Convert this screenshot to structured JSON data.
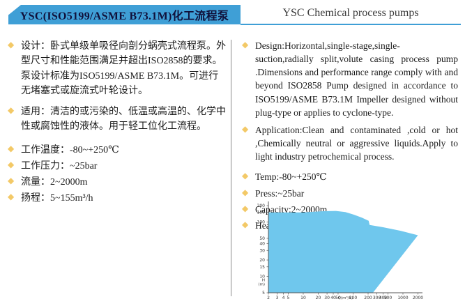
{
  "header": {
    "banner_title": "YSC(ISO5199/ASME B73.1M)化工流程泵",
    "english_title": "YSC Chemical process pumps",
    "banner_color": "#3f9fd6",
    "underline_color": "#3f9fd6"
  },
  "colors": {
    "bullet_diamond": "#f3c967",
    "chart_fill": "#6fc7ed",
    "axis": "#555555",
    "divider": "#8a8a8a"
  },
  "left_column": {
    "bullets": [
      {
        "text": "设计：卧式单级单吸径向剖分蜗壳式流程泵。外型尺寸和性能范围满足并超出ISO2858的要求。泵设计标准为ISO5199/ASME B73.1M。可进行无堵塞式或旋流式叶轮设计。"
      },
      {
        "text": "适用：清洁的或污染的、低温或高温的、化学中性或腐蚀性的液体。用于轻工位化工流程。"
      },
      {
        "text": "工作温度：-80~+250℃"
      },
      {
        "text": "工作压力：~25bar"
      },
      {
        "text": "流量：2~2000m"
      },
      {
        "text": "扬程：5~155m³/h"
      }
    ]
  },
  "right_column": {
    "bullets": [
      {
        "text": "Design:Horizontal,single-stage,single-suction,radially split,volute casing process pump .Dimensions and performance range comply with and beyond ISO2858 Pump designed in accordance to ISO5199/ASME B73.1M Impeller designed without plug-type or applies to  cyclone-type."
      },
      {
        "text": "Application:Clean and contaminated ,cold or hot ,Chemically neutral or aggressive liquids.Apply  to light industry petrochemical process."
      },
      {
        "text": "Temp:-80~+250℃"
      },
      {
        "text": "Press:~25bar"
      },
      {
        "text": "Capacity:2~2000m"
      },
      {
        "text": "Head:5~155m³/h"
      }
    ]
  },
  "chart_data": {
    "type": "area",
    "title": "",
    "description": "Pump performance range envelope (flow Q vs head H), log-log scales",
    "xlabel": "Q(m³/h)",
    "ylabel_lines": [
      "H",
      "(m)"
    ],
    "x_scale": "log",
    "y_scale": "log",
    "xlim": [
      2,
      2000
    ],
    "ylim": [
      5,
      200
    ],
    "x_ticks": [
      2,
      3,
      4,
      5,
      10,
      20,
      30,
      40,
      50,
      100,
      200,
      300,
      400,
      500,
      1000,
      2000
    ],
    "y_ticks": [
      5,
      10,
      15,
      20,
      30,
      40,
      50,
      100,
      150,
      200
    ],
    "grid": false,
    "legend": null,
    "fill_color": "#6fc7ed",
    "envelope_polygon_QH": [
      [
        2,
        5
      ],
      [
        2,
        150
      ],
      [
        10,
        150
      ],
      [
        25,
        158
      ],
      [
        45,
        160
      ],
      [
        70,
        152
      ],
      [
        100,
        138
      ],
      [
        150,
        120
      ],
      [
        205,
        105
      ],
      [
        215,
        88
      ],
      [
        400,
        80
      ],
      [
        900,
        69
      ],
      [
        2000,
        57
      ],
      [
        250,
        5
      ]
    ]
  }
}
